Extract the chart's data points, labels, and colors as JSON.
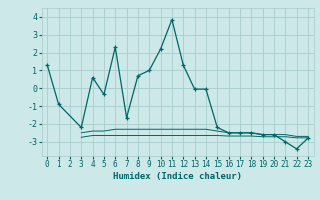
{
  "title": "",
  "xlabel": "Humidex (Indice chaleur)",
  "bg_color": "#cce8e8",
  "grid_color": "#aacccc",
  "line_color": "#006666",
  "xlim": [
    -0.5,
    23.5
  ],
  "ylim": [
    -3.8,
    4.5
  ],
  "yticks": [
    -3,
    -2,
    -1,
    0,
    1,
    2,
    3,
    4
  ],
  "xticks": [
    0,
    1,
    2,
    3,
    4,
    5,
    6,
    7,
    8,
    9,
    10,
    11,
    12,
    13,
    14,
    15,
    16,
    17,
    18,
    19,
    20,
    21,
    22,
    23
  ],
  "line1_x": [
    0,
    1,
    3,
    4,
    5,
    6,
    7,
    8,
    9,
    10,
    11,
    12,
    13,
    14,
    15,
    16,
    17,
    18,
    19,
    20,
    21,
    22,
    23
  ],
  "line1_y": [
    1.3,
    -0.9,
    -2.2,
    0.6,
    -0.35,
    2.3,
    -1.65,
    0.7,
    1.0,
    2.2,
    3.85,
    1.3,
    -0.05,
    -0.05,
    -2.2,
    -2.5,
    -2.5,
    -2.5,
    -2.6,
    -2.6,
    -3.0,
    -3.4,
    -2.8
  ],
  "line2_x": [
    3,
    4,
    5,
    6,
    7,
    8,
    9,
    10,
    11,
    12,
    13,
    14,
    15,
    16,
    17,
    18,
    19,
    20,
    21,
    22,
    23
  ],
  "line2_y": [
    -2.5,
    -2.4,
    -2.4,
    -2.3,
    -2.3,
    -2.3,
    -2.3,
    -2.3,
    -2.3,
    -2.3,
    -2.3,
    -2.3,
    -2.4,
    -2.5,
    -2.5,
    -2.5,
    -2.6,
    -2.6,
    -2.6,
    -2.7,
    -2.7
  ],
  "line3_x": [
    3,
    4,
    5,
    6,
    7,
    8,
    9,
    10,
    11,
    12,
    13,
    14,
    15,
    16,
    17,
    18,
    19,
    20,
    21,
    22,
    23
  ],
  "line3_y": [
    -2.75,
    -2.65,
    -2.65,
    -2.65,
    -2.65,
    -2.65,
    -2.65,
    -2.65,
    -2.65,
    -2.65,
    -2.65,
    -2.65,
    -2.65,
    -2.68,
    -2.68,
    -2.68,
    -2.72,
    -2.72,
    -2.72,
    -2.78,
    -2.78
  ]
}
